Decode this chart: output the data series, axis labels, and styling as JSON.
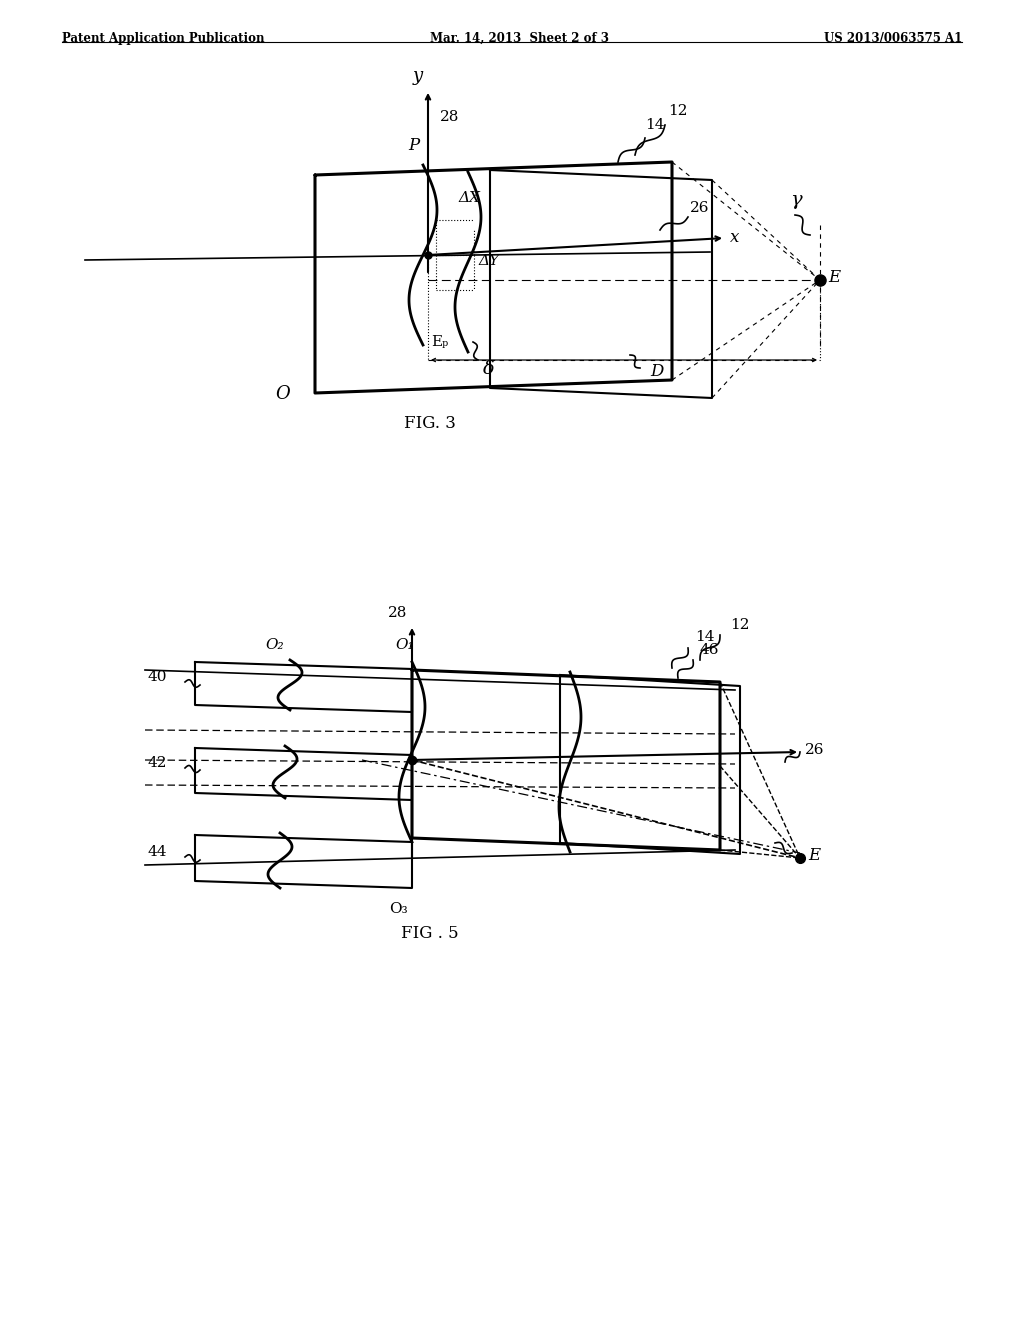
{
  "header_left": "Patent Application Publication",
  "header_center": "Mar. 14, 2013  Sheet 2 of 3",
  "header_right": "US 2013/0063575 A1",
  "fig3_label": "FIG. 3",
  "fig5_label": "FIG . 5",
  "bg_color": "#ffffff",
  "line_color": "#000000"
}
